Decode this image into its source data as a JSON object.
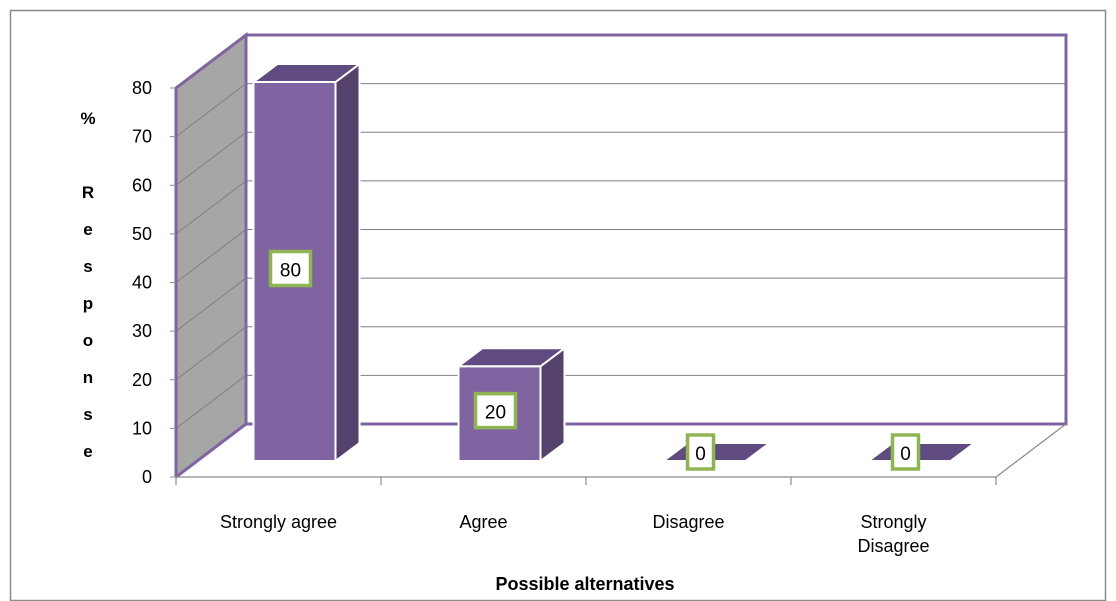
{
  "chart_data": {
    "type": "bar",
    "style": "3d-column",
    "categories": [
      "Strongly agree",
      "Agree",
      "Disagree",
      "Strongly Disagree"
    ],
    "category_lines": [
      [
        "Strongly agree"
      ],
      [
        "Agree"
      ],
      [
        "Disagree"
      ],
      [
        "Strongly",
        "Disagree"
      ]
    ],
    "values": [
      80,
      20,
      0,
      0
    ],
    "data_labels": [
      "80",
      "20",
      "0",
      "0"
    ],
    "xlabel": "Possible alternatives",
    "ylabel": "% Response",
    "ylabel_lines": [
      "%",
      "",
      "R",
      "e",
      "s",
      "p",
      "o",
      "n",
      "s",
      "e"
    ],
    "ylim": [
      0,
      80
    ],
    "yticks": [
      0,
      10,
      20,
      30,
      40,
      50,
      60,
      70,
      80
    ],
    "ytick_labels": [
      "0",
      "10",
      "20",
      "30",
      "40",
      "50",
      "60",
      "70",
      "80"
    ],
    "grid": true,
    "legend": "none",
    "colors": {
      "bar_front": "#8064a2",
      "bar_side": "#54426d",
      "bar_top": "#5f4b7f",
      "bar_outline": "#ffffff",
      "frame_outline": "#8064a2",
      "back_wall": "#ffffff",
      "side_wall": "#a6a6a6",
      "floor": "#ffffff",
      "gridline": "#7f7f7f",
      "label_border": "#8fb552",
      "label_fill": "#ffffff",
      "text": "#000000",
      "chart_border": "#8c8c8c"
    }
  }
}
